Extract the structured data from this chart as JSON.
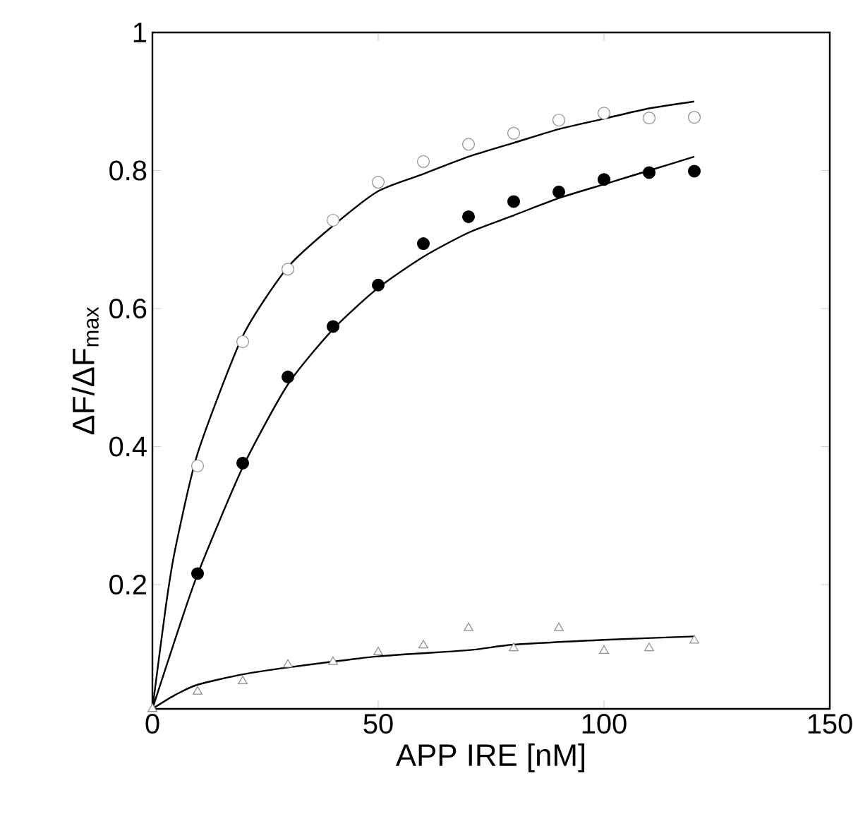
{
  "chart_data": {
    "type": "scatter",
    "xlabel": "APP IRE [nM]",
    "ylabel": "ΔF/ΔF$_{max}$",
    "xlim": [
      0,
      150
    ],
    "ylim": [
      0.02,
      1
    ],
    "xticks": [
      0,
      50,
      100,
      150
    ],
    "yticks": [
      0.2,
      0.4,
      0.6,
      0.8,
      1
    ],
    "grid": false,
    "series": [
      {
        "marker": "circle",
        "color": "#8c8c8c",
        "x": [
          10,
          20,
          30,
          40,
          50,
          60,
          70,
          80,
          90,
          100,
          110,
          120
        ],
        "values": [
          0.372,
          0.552,
          0.657,
          0.728,
          0.783,
          0.813,
          0.838,
          0.854,
          0.873,
          0.883,
          0.876,
          0.877
        ]
      },
      {
        "marker": "circle",
        "color": "#000000",
        "x": [
          10,
          20,
          30,
          40,
          50,
          60,
          70,
          80,
          90,
          100,
          110,
          120
        ],
        "values": [
          0.216,
          0.376,
          0.501,
          0.574,
          0.634,
          0.694,
          0.733,
          0.755,
          0.769,
          0.787,
          0.797,
          0.799
        ]
      },
      {
        "marker": "triangle",
        "color": "#8c8c8c",
        "x": [
          0,
          10,
          20,
          30,
          40,
          50,
          60,
          70,
          80,
          90,
          100,
          110,
          120
        ],
        "values": [
          0.02,
          0.045,
          0.06,
          0.084,
          0.088,
          0.102,
          0.112,
          0.137,
          0.108,
          0.137,
          0.104,
          0.108,
          0.119
        ]
      },
      {
        "type": "line",
        "color": "#000000",
        "line_style": "solid",
        "x": [
          0,
          3,
          5,
          10,
          20,
          30,
          40,
          50,
          60,
          70,
          80,
          90,
          100,
          110,
          120
        ],
        "values": [
          0.02,
          0.17,
          0.25,
          0.39,
          0.56,
          0.66,
          0.72,
          0.77,
          0.795,
          0.82,
          0.84,
          0.86,
          0.875,
          0.89,
          0.9
        ]
      },
      {
        "type": "line",
        "color": "#000000",
        "line_style": "solid",
        "x": [
          0,
          5,
          10,
          20,
          30,
          40,
          50,
          60,
          70,
          80,
          90,
          100,
          110,
          120
        ],
        "values": [
          0.02,
          0.12,
          0.215,
          0.37,
          0.49,
          0.57,
          0.63,
          0.675,
          0.71,
          0.735,
          0.76,
          0.78,
          0.8,
          0.82
        ]
      },
      {
        "type": "line",
        "color": "#000000",
        "line_style": "solid",
        "x": [
          0,
          5,
          10,
          20,
          30,
          50,
          70,
          80,
          100,
          120
        ],
        "values": [
          0.02,
          0.04,
          0.055,
          0.07,
          0.08,
          0.096,
          0.105,
          0.113,
          0.12,
          0.125
        ]
      }
    ]
  }
}
